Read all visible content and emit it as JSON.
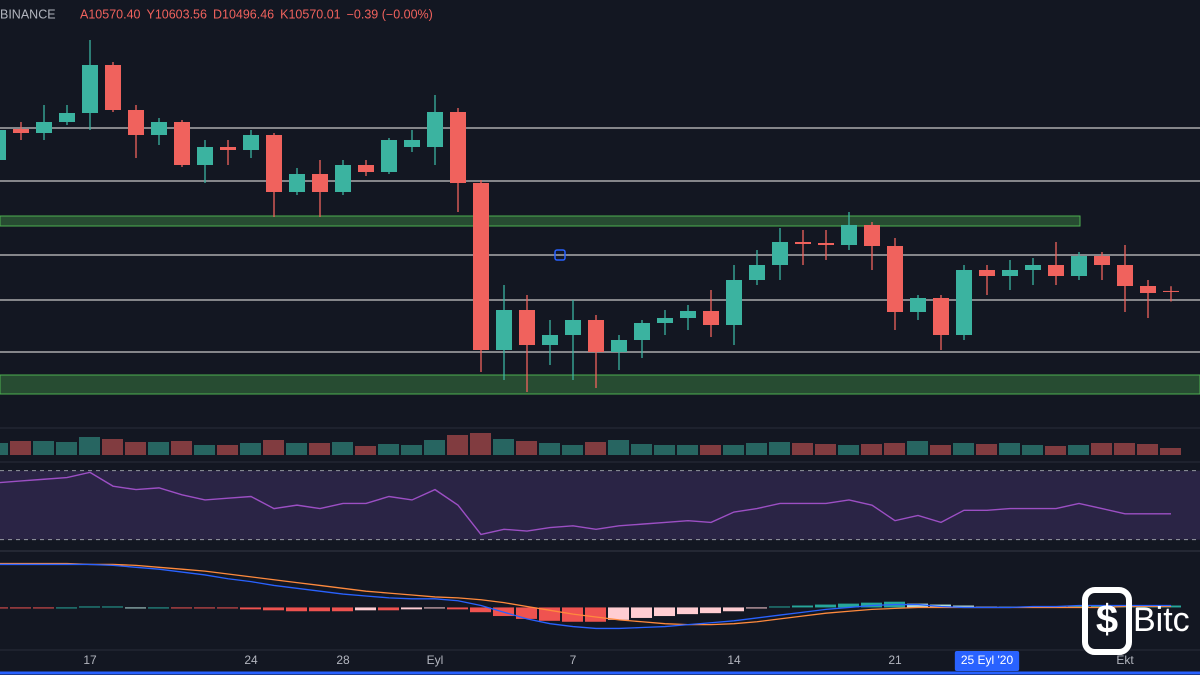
{
  "chart_data": [
    {
      "type": "candlestick",
      "exchange": "BINANCE",
      "header_items": [
        "A10570.40",
        "Y10603.56",
        "D10496.46",
        "K10570.01",
        "−0.39 (−0.00%)"
      ],
      "categories": [
        null,
        null,
        null,
        null,
        "17",
        null,
        null,
        null,
        null,
        null,
        null,
        "24",
        null,
        null,
        null,
        "28",
        null,
        null,
        null,
        "Eyl",
        null,
        null,
        null,
        null,
        null,
        "7",
        null,
        null,
        null,
        null,
        null,
        null,
        "14",
        null,
        null,
        null,
        null,
        null,
        null,
        "21",
        null,
        null,
        null,
        "25 Eyl '20",
        null,
        null,
        null,
        null,
        null,
        "Ekt",
        null,
        null
      ],
      "highlight_category": 43,
      "open": [
        11487,
        11704,
        11676,
        11753,
        11816,
        12152,
        11837,
        11662,
        11753,
        11452,
        11578,
        11557,
        11662,
        11263,
        11389,
        11263,
        11452,
        11403,
        11578,
        11578,
        11823,
        11326,
        10157,
        10437,
        10192,
        10262,
        10367,
        10143,
        10227,
        10346,
        10381,
        10430,
        10332,
        10647,
        10752,
        10913,
        10906,
        10892,
        11032,
        10885,
        10423,
        10521,
        10262,
        10717,
        10675,
        10717,
        10752,
        10675,
        10815,
        10752,
        10605,
        10570.4
      ],
      "high": [
        11732,
        11753,
        11872,
        11872,
        12327,
        12173,
        11872,
        11781,
        11767,
        11627,
        11627,
        11697,
        11676,
        11431,
        11487,
        11487,
        11487,
        11641,
        11697,
        11942,
        11851,
        11347,
        10612,
        10542,
        10367,
        10507,
        10402,
        10262,
        10367,
        10437,
        10472,
        10577,
        10752,
        10857,
        11011,
        10997,
        10997,
        11123,
        11053,
        10941,
        10542,
        10542,
        10752,
        10752,
        10787,
        10801,
        10913,
        10843,
        10843,
        10892,
        10647,
        10603.56
      ],
      "low": [
        11452,
        11627,
        11627,
        11732,
        11697,
        11823,
        11501,
        11592,
        11438,
        11326,
        11452,
        11501,
        11088,
        11242,
        11088,
        11242,
        11375,
        11389,
        11543,
        11452,
        11123,
        10003,
        9947,
        9863,
        10052,
        9947,
        9891,
        10017,
        10101,
        10262,
        10297,
        10248,
        10192,
        10612,
        10647,
        10752,
        10787,
        10857,
        10717,
        10297,
        10367,
        10157,
        10227,
        10542,
        10577,
        10612,
        10612,
        10647,
        10647,
        10423,
        10381,
        10496.46
      ],
      "close": [
        11697,
        11676,
        11753,
        11816,
        12152,
        11837,
        11662,
        11753,
        11452,
        11578,
        11557,
        11662,
        11263,
        11389,
        11263,
        11452,
        11403,
        11627,
        11627,
        11823,
        11326,
        10157,
        10437,
        10192,
        10262,
        10367,
        10143,
        10227,
        10346,
        10381,
        10430,
        10332,
        10647,
        10752,
        10913,
        10899,
        10892,
        11032,
        10885,
        10423,
        10521,
        10262,
        10717,
        10675,
        10717,
        10752,
        10675,
        10815,
        10752,
        10605,
        10556,
        10570.01
      ],
      "up_color": "#3bb3a0",
      "down_color": "#f0625d",
      "ylim": [
        9597,
        12572
      ]
    },
    {
      "type": "volume",
      "values": [
        12,
        14,
        14,
        13,
        18,
        16,
        13,
        13,
        14,
        10,
        10,
        12,
        15,
        12,
        12,
        13,
        9,
        11,
        10,
        15,
        20,
        22,
        16,
        14,
        12,
        10,
        13,
        15,
        11,
        10,
        10,
        10,
        10,
        12,
        13,
        12,
        11,
        10,
        11,
        12,
        14,
        10,
        12,
        11,
        12,
        10,
        9,
        10,
        12,
        12,
        11,
        7
      ],
      "up_color": "rgba(59,179,160,0.5)",
      "down_color": "rgba(240,98,93,0.5)",
      "ylim": [
        0,
        30
      ]
    },
    {
      "type": "line",
      "values": [
        63,
        64,
        65,
        66,
        69,
        61,
        59,
        60,
        56,
        53,
        54,
        55,
        48,
        50,
        48,
        51,
        51,
        55,
        53,
        59,
        50,
        33,
        36,
        35,
        37,
        38,
        36,
        38,
        39,
        40,
        41,
        40,
        46,
        48,
        51,
        51,
        51,
        53,
        50,
        41,
        44,
        40,
        47,
        47,
        48,
        48,
        48,
        51,
        48,
        45,
        45,
        45
      ],
      "color": "#9c4fc4",
      "bands": [
        30,
        70
      ],
      "band_color": "rgba(126,87,194,0.22)",
      "ylim": [
        24,
        75
      ]
    },
    {
      "type": "macd",
      "histogram": [
        -1,
        -1,
        -1,
        0,
        1,
        1,
        0,
        0,
        -1,
        -1,
        -1,
        -2,
        -3,
        -4,
        -4,
        -4,
        -3,
        -3,
        -2,
        -1,
        -2,
        -5,
        -9,
        -12,
        -14,
        -15,
        -15,
        -13,
        -11,
        -9,
        -7,
        -6,
        -4,
        -1,
        1,
        2,
        3,
        4,
        5,
        6,
        4,
        3,
        2,
        1,
        1,
        1,
        1,
        2,
        2,
        2,
        2,
        2
      ],
      "macd": [
        45,
        45,
        45,
        45,
        45,
        44,
        42,
        40,
        37,
        34,
        30,
        27,
        23,
        20,
        17,
        14,
        12,
        10,
        9,
        9,
        7,
        2,
        -5,
        -12,
        -17,
        -20,
        -22,
        -22,
        -21,
        -20,
        -18,
        -16,
        -14,
        -11,
        -8,
        -5,
        -2,
        0,
        2,
        3,
        3,
        1,
        0,
        0,
        0,
        1,
        1,
        2,
        2,
        2,
        2,
        2
      ],
      "signal": [
        46,
        46,
        46,
        46,
        45,
        45,
        44,
        42,
        40,
        38,
        35,
        32,
        29,
        26,
        23,
        20,
        17,
        15,
        13,
        11,
        10,
        8,
        5,
        1,
        -3,
        -7,
        -10,
        -13,
        -15,
        -17,
        -18,
        -18,
        -17,
        -15,
        -12,
        -9,
        -6,
        -4,
        -2,
        -1,
        0,
        0,
        0,
        0,
        0,
        0,
        0,
        0,
        0,
        1,
        1,
        1
      ],
      "macd_color": "#2962ff",
      "signal_color": "#ff8a3d",
      "hist_colors": [
        "#26a69a",
        "#b2dfdb",
        "#ef5350",
        "#ffcdd2"
      ],
      "ylim": [
        -55,
        58
      ]
    }
  ],
  "watermark": "Bitc"
}
